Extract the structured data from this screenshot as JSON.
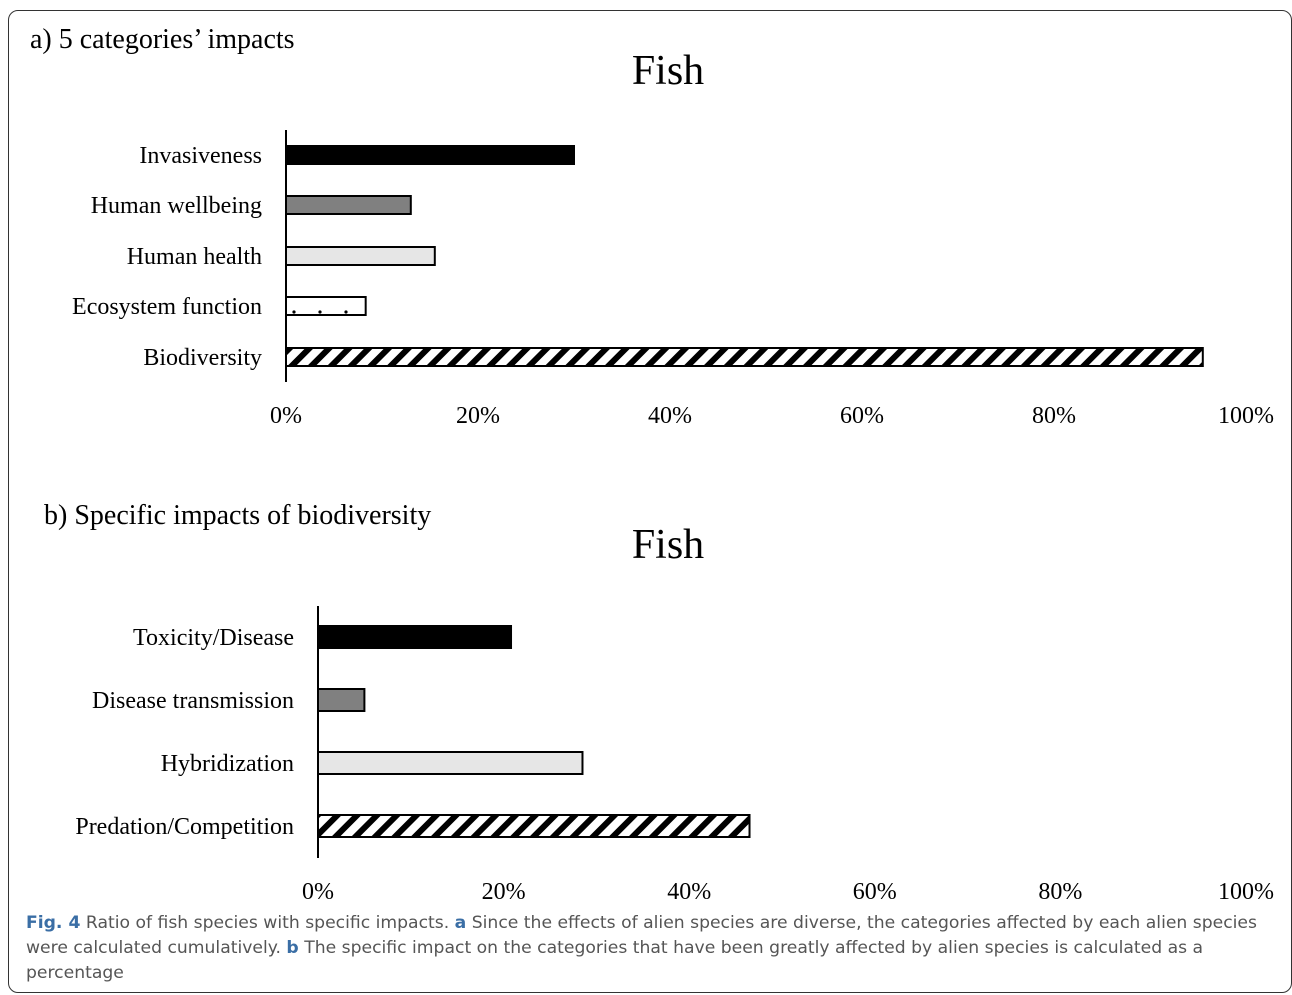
{
  "chart_data": [
    {
      "type": "bar",
      "orientation": "horizontal",
      "panel_label": "a) 5 categories’ impacts",
      "title": "Fish",
      "categories": [
        "Invasiveness",
        "Human wellbeing",
        "Human health",
        "Ecosystem function",
        "Biodiversity"
      ],
      "values": [
        30,
        13,
        15.5,
        8.3,
        95.5
      ],
      "fills": [
        "solid-black",
        "solid-gray",
        "solid-light-gray",
        "dotted",
        "hatched"
      ],
      "xlim": [
        0,
        100
      ],
      "xticks": [
        "0%",
        "20%",
        "40%",
        "60%",
        "80%",
        "100%"
      ],
      "xlabel": "",
      "ylabel": "",
      "grid": false
    },
    {
      "type": "bar",
      "orientation": "horizontal",
      "panel_label": "b) Specific impacts of biodiversity",
      "title": "Fish",
      "categories": [
        "Toxicity/Disease",
        "Disease transmission",
        "Hybridization",
        "Predation/Competition"
      ],
      "values": [
        20.8,
        5,
        28.5,
        46.5
      ],
      "fills": [
        "solid-black",
        "solid-gray",
        "solid-light-gray",
        "hatched"
      ],
      "xlim": [
        0,
        100
      ],
      "xticks": [
        "0%",
        "20%",
        "40%",
        "60%",
        "80%",
        "100%"
      ],
      "xlabel": "",
      "ylabel": "",
      "grid": false
    }
  ],
  "caption": {
    "fig_label": "Fig. 4",
    "text_1": " Ratio of fish species with specific impacts. ",
    "part_a": "a",
    "text_2": " Since the effects of alien species are diverse, the categories affected by each alien species were calculated cumulatively. ",
    "part_b": "b",
    "text_3": " The specific impact on the categories that have been greatly affected by alien species is calculated as a percentage"
  },
  "colors": {
    "solid-black": "#000000",
    "solid-gray": "#808080",
    "solid-light-gray": "#e6e6e6",
    "caption_label": "#3a6ea5",
    "caption_text": "#555555"
  }
}
